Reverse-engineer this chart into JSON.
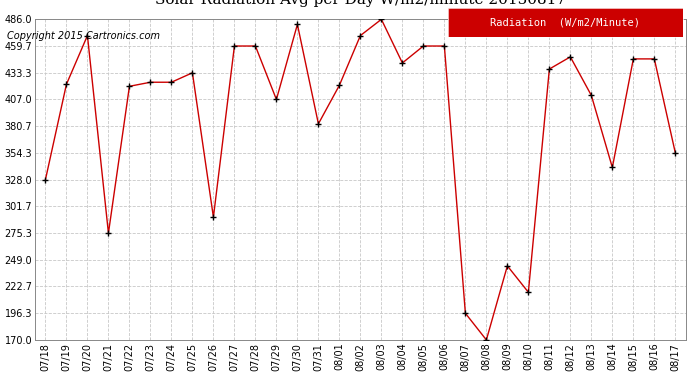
{
  "copyright": "Copyright 2015 Cartronics.com",
  "legend_label": "Radiation  (W/m2/Minute)",
  "dates": [
    "07/18",
    "07/19",
    "07/20",
    "07/21",
    "07/22",
    "07/23",
    "07/24",
    "07/25",
    "07/26",
    "07/27",
    "07/28",
    "07/29",
    "07/30",
    "07/31",
    "08/01",
    "08/02",
    "08/03",
    "08/04",
    "08/05",
    "08/06",
    "08/07",
    "08/08",
    "08/09",
    "08/10",
    "08/11",
    "08/12",
    "08/13",
    "08/14",
    "08/15",
    "08/16",
    "08/17"
  ],
  "values": [
    328.0,
    422.0,
    470.0,
    275.3,
    420.0,
    424.0,
    424.0,
    433.3,
    291.0,
    459.7,
    459.7,
    407.0,
    481.0,
    383.0,
    421.0,
    470.0,
    486.0,
    443.0,
    459.7,
    459.7,
    196.3,
    170.0,
    243.0,
    217.0,
    437.0,
    449.0,
    411.0,
    340.0,
    447.0,
    447.0,
    354.3
  ],
  "ylim_min": 170.0,
  "ylim_max": 486.0,
  "yticks": [
    170.0,
    196.3,
    222.7,
    249.0,
    275.3,
    301.7,
    328.0,
    354.3,
    380.7,
    407.0,
    433.3,
    459.7,
    486.0
  ],
  "line_color": "#cc0000",
  "marker_color": "#000000",
  "bg_color": "#ffffff",
  "grid_color": "#c8c8c8",
  "title_fontsize": 11,
  "copyright_fontsize": 7,
  "legend_bg": "#cc0000",
  "legend_text_color": "#ffffff",
  "legend_fontsize": 7.5
}
